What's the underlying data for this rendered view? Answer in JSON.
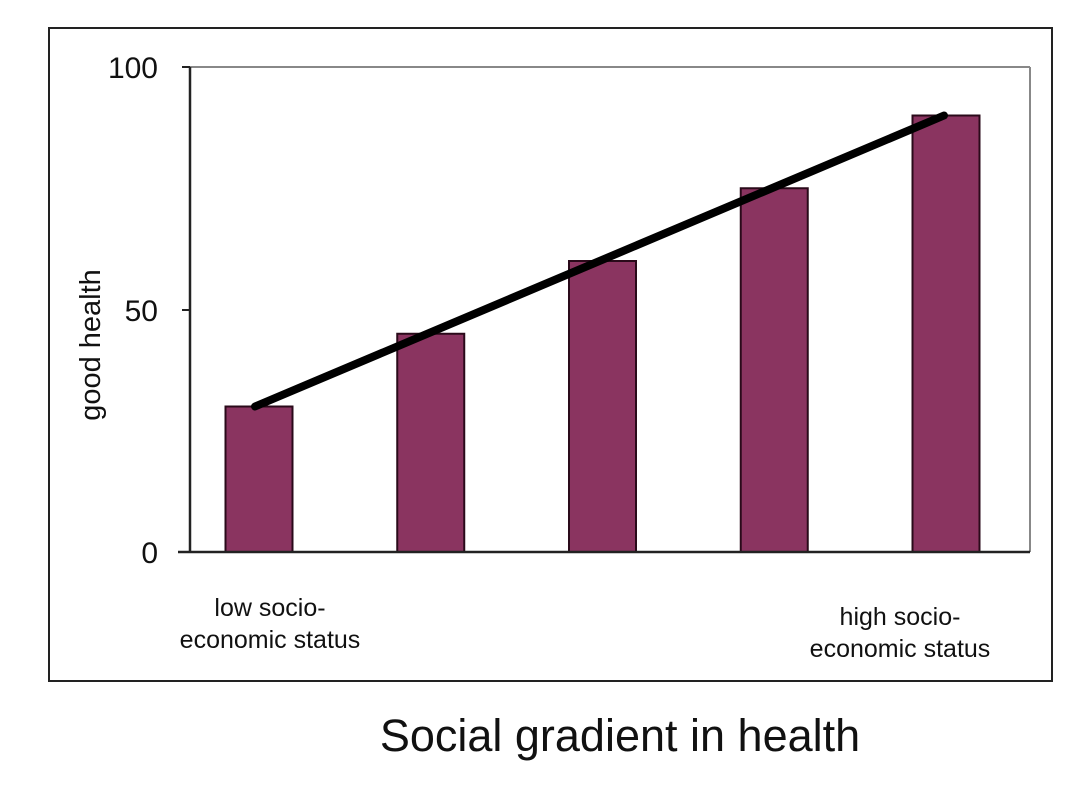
{
  "chart_data": {
    "type": "bar",
    "title": "Social gradient in health",
    "xlabel": "",
    "ylabel": "good health",
    "ylim": [
      0,
      100
    ],
    "yticks": [
      "0",
      "50",
      "100"
    ],
    "categories": [
      "",
      "",
      "",
      "",
      ""
    ],
    "values": [
      30,
      45,
      60,
      75,
      90
    ],
    "x_annotations": {
      "low": "low socio-\neconomic status",
      "high": "high socio-\neconomic status"
    },
    "trend_line": {
      "from": 30,
      "to": 90
    },
    "grid": false,
    "legend": "none",
    "colors": {
      "bar": "#8a3460",
      "trend": "#000000"
    }
  }
}
